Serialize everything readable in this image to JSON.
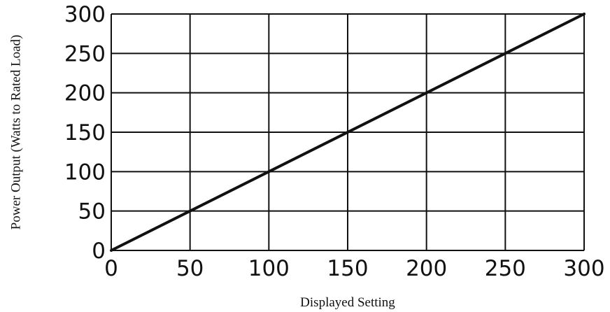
{
  "chart_data": {
    "type": "line",
    "title": "",
    "xlabel": "Displayed Setting",
    "ylabel": "Power Output (Watts to Rated Load)",
    "xlim": [
      0,
      300
    ],
    "ylim": [
      0,
      300
    ],
    "x_ticks": [
      "0",
      "50",
      "100",
      "150",
      "200",
      "250",
      "300"
    ],
    "y_ticks": [
      "0",
      "50",
      "100",
      "150",
      "200",
      "250",
      "300"
    ],
    "grid": true,
    "series": [
      {
        "x": [
          0,
          300
        ],
        "y": [
          0,
          300
        ]
      }
    ],
    "colors": {
      "line": "#111111",
      "grid": "#111111",
      "text": "#111111"
    }
  }
}
